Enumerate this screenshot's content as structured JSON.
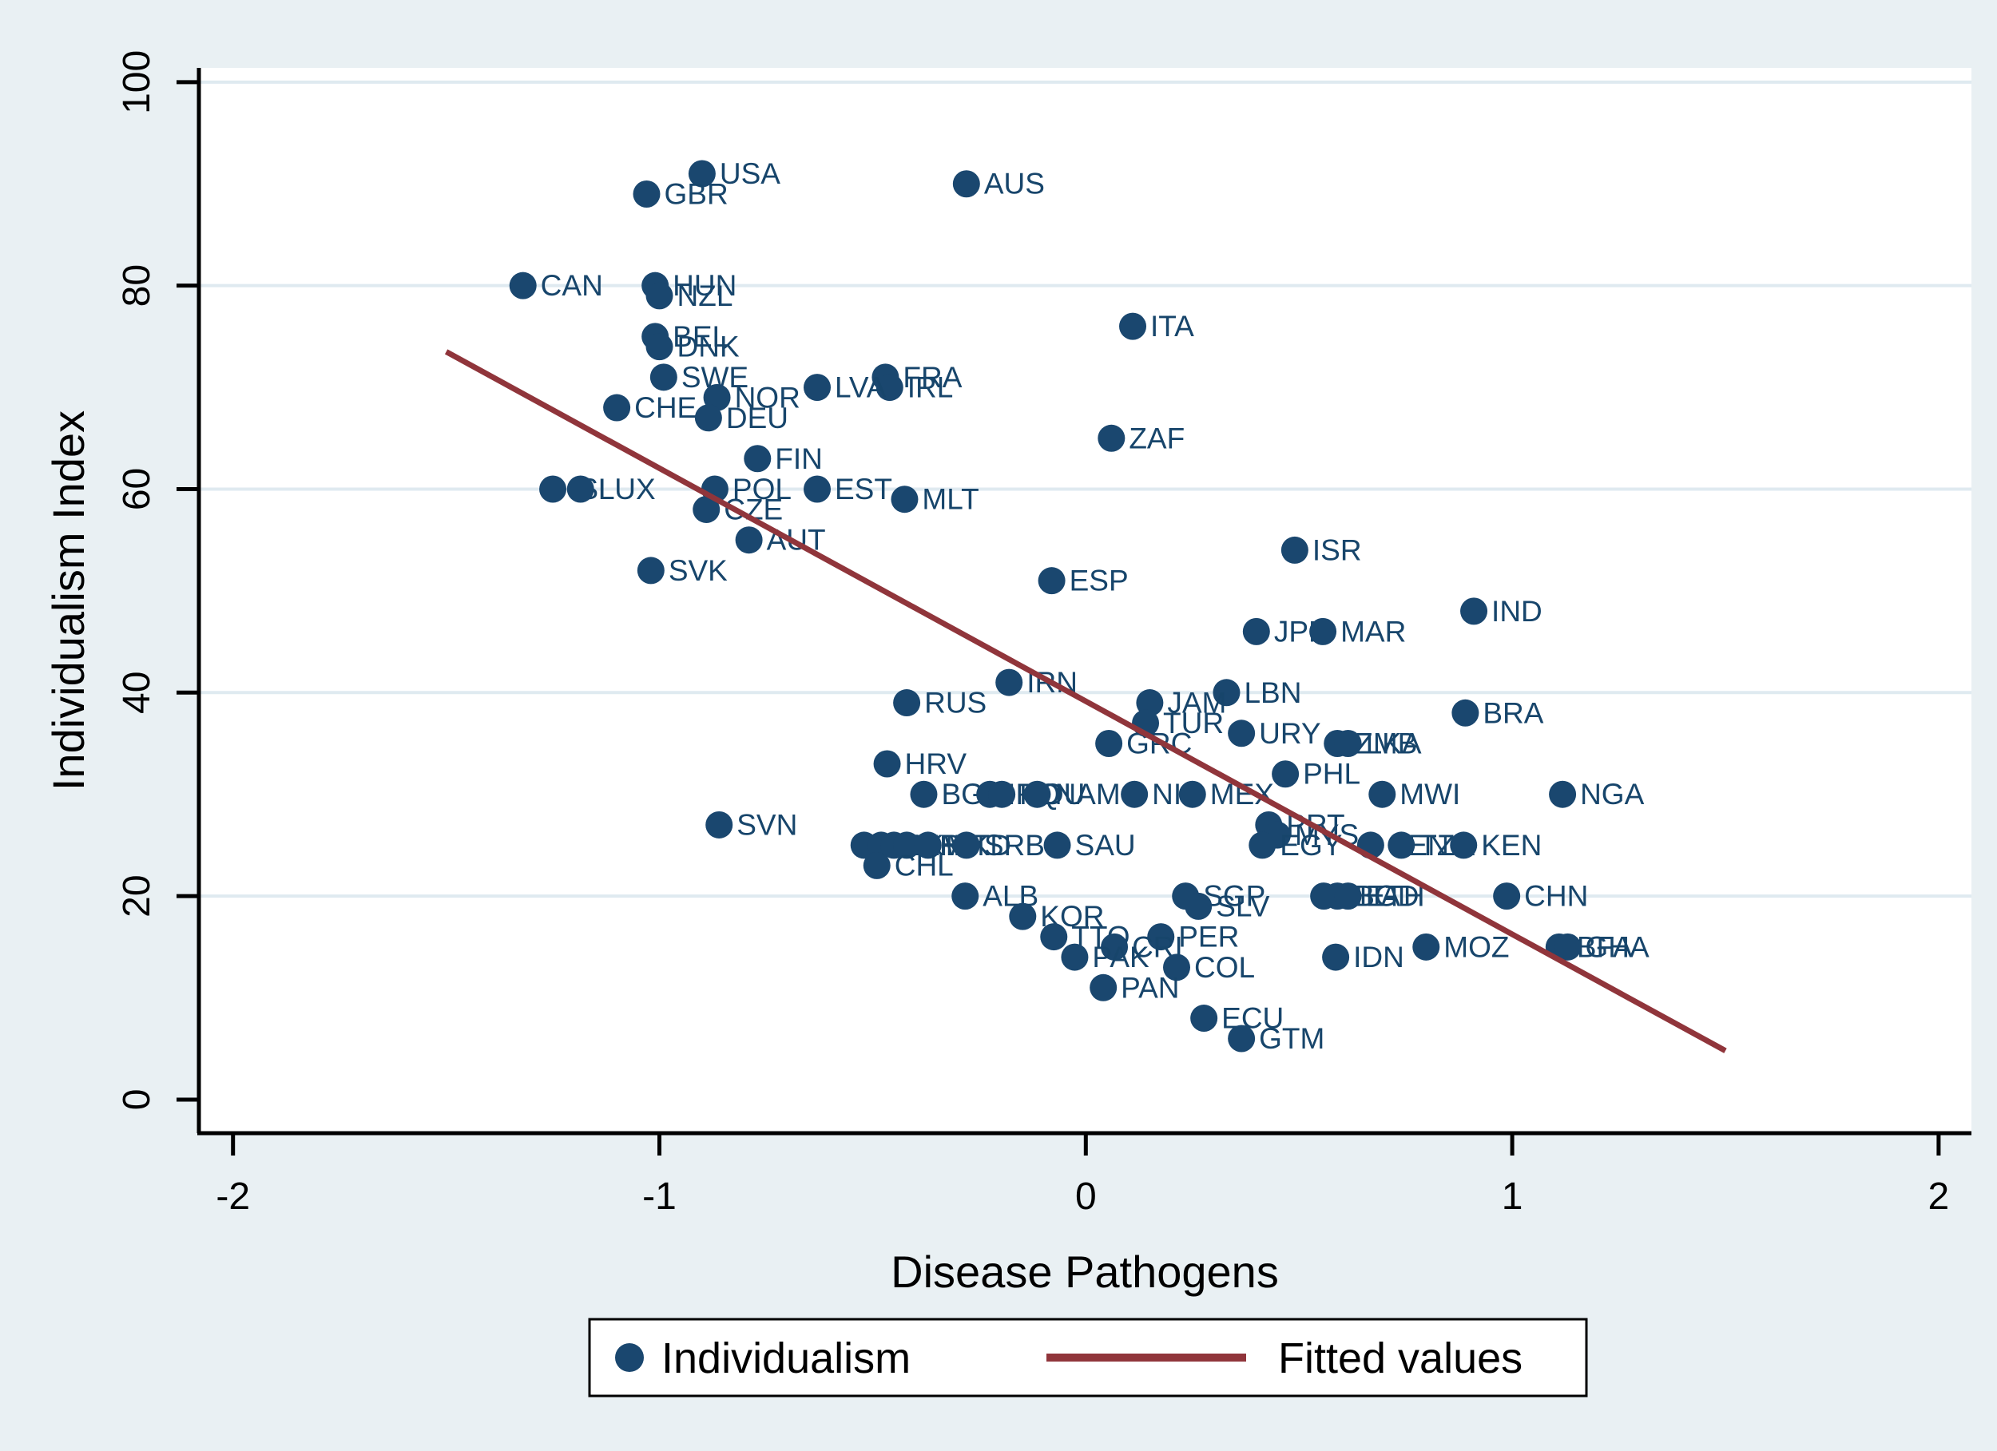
{
  "chart_data": {
    "type": "scatter",
    "title": "",
    "xlabel": "Disease Pathogens",
    "ylabel": "Individualism Index",
    "xlim": [
      -2.08,
      2.077
    ],
    "ylim": [
      -3.3,
      101.4
    ],
    "xticks": [
      -2,
      -1,
      0,
      1,
      2
    ],
    "yticks": [
      0,
      20,
      40,
      60,
      80,
      100
    ],
    "grid": "horizontal-only",
    "legend": {
      "position": "bottom-center",
      "marker_label": "Individualism",
      "line_label": "Fitted values"
    },
    "series": [
      {
        "name": "Individualism",
        "points": [
          {
            "x": -0.9,
            "y": 91,
            "label": "USA"
          },
          {
            "x": -0.28,
            "y": 90,
            "label": "AUS"
          },
          {
            "x": -1.03,
            "y": 89,
            "label": "GBR"
          },
          {
            "x": -1.32,
            "y": 80,
            "label": "CAN"
          },
          {
            "x": -1.01,
            "y": 80,
            "label": "HUN"
          },
          {
            "x": -1.0,
            "y": 79,
            "label": "NZL"
          },
          {
            "x": 0.11,
            "y": 76,
            "label": "ITA"
          },
          {
            "x": -1.01,
            "y": 75,
            "label": "BEL"
          },
          {
            "x": -1.0,
            "y": 74,
            "label": "DNK"
          },
          {
            "x": -0.99,
            "y": 71,
            "label": "SWE"
          },
          {
            "x": -0.47,
            "y": 71,
            "label": "FRA"
          },
          {
            "x": -0.46,
            "y": 70,
            "label": "IRL"
          },
          {
            "x": -0.63,
            "y": 70,
            "label": "LVA"
          },
          {
            "x": -0.865,
            "y": 69,
            "label": "NOR"
          },
          {
            "x": -1.1,
            "y": 68,
            "label": "CHE"
          },
          {
            "x": -0.885,
            "y": 67,
            "label": "DEU"
          },
          {
            "x": 0.06,
            "y": 65,
            "label": "ZAF"
          },
          {
            "x": -0.77,
            "y": 63,
            "label": "FIN"
          },
          {
            "x": -1.25,
            "y": 60,
            "label": "ISL"
          },
          {
            "x": -1.185,
            "y": 60,
            "label": "LUX"
          },
          {
            "x": -0.87,
            "y": 60,
            "label": "POL"
          },
          {
            "x": -0.63,
            "y": 60,
            "label": "EST"
          },
          {
            "x": -0.425,
            "y": 59,
            "label": "MLT"
          },
          {
            "x": -0.89,
            "y": 58,
            "label": "CZE"
          },
          {
            "x": -0.79,
            "y": 55,
            "label": "AUT"
          },
          {
            "x": 0.49,
            "y": 54,
            "label": "ISR"
          },
          {
            "x": -1.02,
            "y": 52,
            "label": "SVK"
          },
          {
            "x": -0.08,
            "y": 51,
            "label": "ESP"
          },
          {
            "x": 0.91,
            "y": 48,
            "label": "IND"
          },
          {
            "x": 0.4,
            "y": 46,
            "label": "JPN"
          },
          {
            "x": 0.556,
            "y": 46,
            "label": "MAR"
          },
          {
            "x": -0.18,
            "y": 41,
            "label": "IRN"
          },
          {
            "x": 0.33,
            "y": 40,
            "label": "LBN"
          },
          {
            "x": -0.42,
            "y": 39,
            "label": "RUS"
          },
          {
            "x": 0.15,
            "y": 39,
            "label": "JAM"
          },
          {
            "x": 0.89,
            "y": 38,
            "label": "BRA"
          },
          {
            "x": 0.14,
            "y": 37,
            "label": "TUR"
          },
          {
            "x": 0.365,
            "y": 36,
            "label": "URY"
          },
          {
            "x": 0.59,
            "y": 35,
            "label": "ZMB"
          },
          {
            "x": 0.615,
            "y": 35,
            "label": "LKA"
          },
          {
            "x": 0.054,
            "y": 35,
            "label": "GRC"
          },
          {
            "x": -0.466,
            "y": 33,
            "label": "HRV"
          },
          {
            "x": 0.468,
            "y": 32,
            "label": "PHL"
          },
          {
            "x": -0.38,
            "y": 30,
            "label": "BGR"
          },
          {
            "x": -0.225,
            "y": 30,
            "label": "IRQ"
          },
          {
            "x": -0.197,
            "y": 30,
            "label": "ROU"
          },
          {
            "x": -0.114,
            "y": 30,
            "label": "NAM"
          },
          {
            "x": 0.114,
            "y": 30,
            "label": "NIC"
          },
          {
            "x": 0.25,
            "y": 30,
            "label": "MEX"
          },
          {
            "x": 0.695,
            "y": 30,
            "label": "MWI"
          },
          {
            "x": 1.118,
            "y": 30,
            "label": "NGA"
          },
          {
            "x": -0.86,
            "y": 27,
            "label": "SVN"
          },
          {
            "x": 0.429,
            "y": 27,
            "label": "PRT"
          },
          {
            "x": 0.449,
            "y": 26,
            "label": "MYS"
          },
          {
            "x": -0.52,
            "y": 25,
            "label": "BLR"
          },
          {
            "x": -0.48,
            "y": 25,
            "label": "UKR"
          },
          {
            "x": -0.45,
            "y": 25,
            "label": "BIH"
          },
          {
            "x": -0.42,
            "y": 25,
            "label": "KWT"
          },
          {
            "x": -0.37,
            "y": 25,
            "label": "MKD"
          },
          {
            "x": -0.28,
            "y": 25,
            "label": "SRB"
          },
          {
            "x": -0.067,
            "y": 25,
            "label": "SAU"
          },
          {
            "x": 0.414,
            "y": 25,
            "label": "EGY"
          },
          {
            "x": 0.668,
            "y": 25,
            "label": "SEN"
          },
          {
            "x": 0.74,
            "y": 25,
            "label": "TZA"
          },
          {
            "x": 0.886,
            "y": 25,
            "label": "KEN"
          },
          {
            "x": -0.49,
            "y": 23,
            "label": "CHL"
          },
          {
            "x": -0.283,
            "y": 20,
            "label": "ALB"
          },
          {
            "x": 0.234,
            "y": 20,
            "label": "SGP"
          },
          {
            "x": 0.558,
            "y": 20,
            "label": "THA"
          },
          {
            "x": 0.59,
            "y": 20,
            "label": "BGD"
          },
          {
            "x": 0.615,
            "y": 20,
            "label": "ETH"
          },
          {
            "x": 0.987,
            "y": 20,
            "label": "CHN"
          },
          {
            "x": 0.264,
            "y": 19,
            "label": "SLV"
          },
          {
            "x": -0.148,
            "y": 18,
            "label": "KOR"
          },
          {
            "x": -0.075,
            "y": 16,
            "label": "TTO"
          },
          {
            "x": 0.176,
            "y": 16,
            "label": "PER"
          },
          {
            "x": 0.067,
            "y": 15,
            "label": "CRI"
          },
          {
            "x": 0.798,
            "y": 15,
            "label": "MOZ"
          },
          {
            "x": 1.11,
            "y": 15,
            "label": "BFA"
          },
          {
            "x": 1.13,
            "y": 15,
            "label": "GHA"
          },
          {
            "x": -0.026,
            "y": 14,
            "label": "PAK"
          },
          {
            "x": 0.586,
            "y": 14,
            "label": "IDN"
          },
          {
            "x": 0.213,
            "y": 13,
            "label": "COL"
          },
          {
            "x": 0.041,
            "y": 11,
            "label": "PAN"
          },
          {
            "x": 0.277,
            "y": 8,
            "label": "ECU"
          },
          {
            "x": 0.365,
            "y": 6,
            "label": "GTM"
          }
        ]
      }
    ],
    "fitted_line": {
      "name": "Fitted values",
      "x1": -1.5,
      "y1": 73.5,
      "x2": 1.5,
      "y2": 4.8
    }
  },
  "colors": {
    "background": "#e9f0f3",
    "plot_background": "#ffffff",
    "grid": "#dfeaf0",
    "axis": "#000000",
    "marker": "#1a476f",
    "marker_label": "#17456b",
    "fitted_line": "#90353b",
    "legend_border": "#000000",
    "legend_background": "#ffffff"
  }
}
